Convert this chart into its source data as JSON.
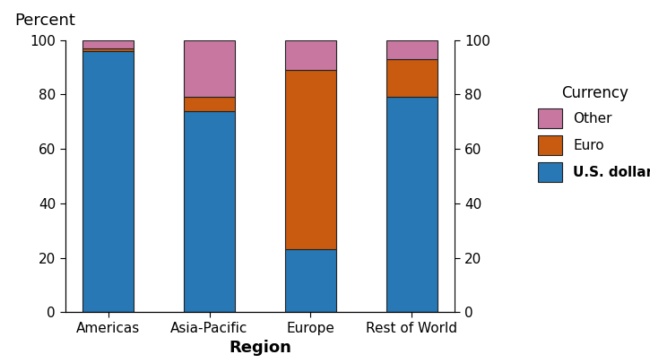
{
  "categories": [
    "Americas",
    "Asia-Pacific",
    "Europe",
    "Rest of World"
  ],
  "usd": [
    96,
    74,
    23,
    79
  ],
  "euro": [
    1,
    5,
    66,
    14
  ],
  "other": [
    3,
    21,
    11,
    7
  ],
  "colors": {
    "usd": "#2878b5",
    "euro": "#c85b10",
    "other": "#c878a0"
  },
  "edgecolor": "#222222",
  "ylabel_left": "Percent",
  "xlabel": "Region",
  "legend_title": "Currency",
  "ylim": [
    0,
    100
  ],
  "yticks": [
    0,
    20,
    40,
    60,
    80,
    100
  ],
  "tick_fontsize": 11,
  "label_fontsize": 13,
  "legend_fontsize": 11,
  "bar_width": 0.5
}
